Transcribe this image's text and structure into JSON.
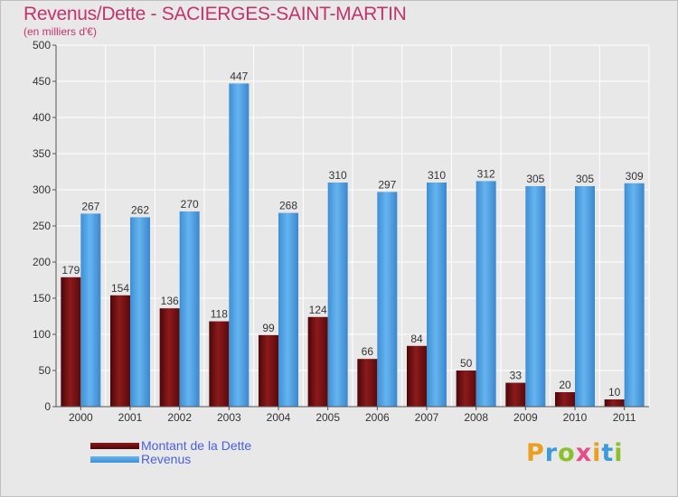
{
  "title": "Revenus/Dette - SACIERGES-SAINT-MARTIN",
  "subtitle": "(en milliers d'€)",
  "colors": {
    "dette": "#6e0f10",
    "revenus": "#56a7e8",
    "title": "#c2346a",
    "legend_text": "#4a5fe0"
  },
  "legend": [
    {
      "label": "Montant de la Dette",
      "color": "#6e0f10"
    },
    {
      "label": "Revenus",
      "color": "#56a7e8"
    }
  ],
  "logo": {
    "letters": [
      "P",
      "r",
      "o",
      "x",
      "i",
      "t",
      "i"
    ],
    "colors": [
      "#e9a020",
      "#3c9bd8",
      "#8cbf2c",
      "#e84a8a",
      "#e9a020",
      "#3c9bd8",
      "#8cbf2c"
    ]
  },
  "chart_data": {
    "type": "bar",
    "title": "Revenus/Dette - SACIERGES-SAINT-MARTIN",
    "subtitle": "(en milliers d'€)",
    "categories": [
      "2000",
      "2001",
      "2002",
      "2003",
      "2004",
      "2005",
      "2006",
      "2007",
      "2008",
      "2009",
      "2010",
      "2011"
    ],
    "series": [
      {
        "name": "Montant de la Dette",
        "values": [
          179,
          154,
          136,
          118,
          99,
          124,
          66,
          84,
          50,
          33,
          20,
          10
        ]
      },
      {
        "name": "Revenus",
        "values": [
          267,
          262,
          270,
          447,
          268,
          310,
          297,
          310,
          312,
          305,
          305,
          309
        ]
      }
    ],
    "ylim": [
      0,
      500
    ],
    "yticks": [
      0,
      50,
      100,
      150,
      200,
      250,
      300,
      350,
      400,
      450,
      500
    ],
    "grid": true,
    "legend_position": "bottom-left"
  }
}
